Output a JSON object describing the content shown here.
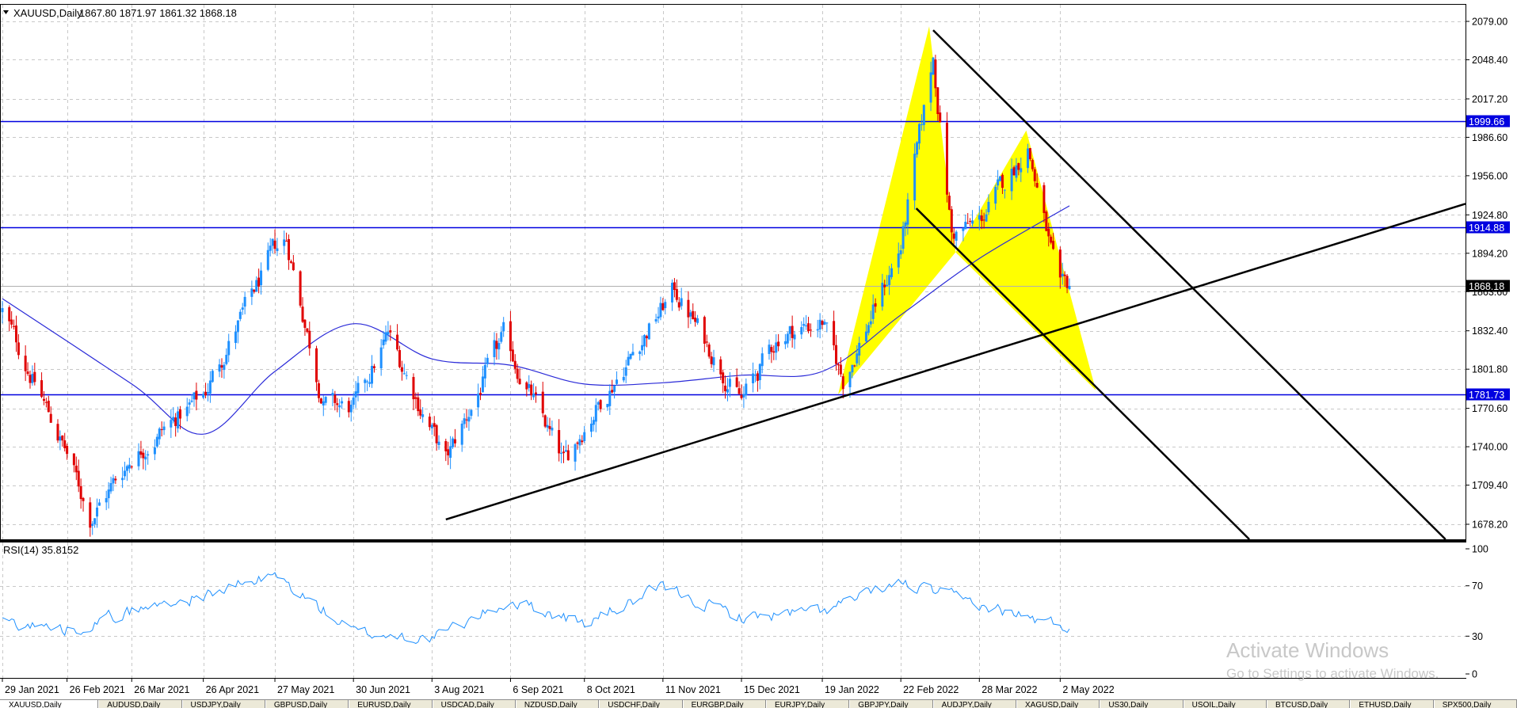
{
  "header": {
    "symbol": "XAUUSD,Daily",
    "ohlc": "1867.80 1871.97 1861.32 1868.18"
  },
  "rsi_header": "RSI(14) 35.8152",
  "watermark": {
    "line1": "Activate Windows",
    "line2": "Go to Settings to activate Windows."
  },
  "colors": {
    "bull": "#1e90ff",
    "bear": "#e00000",
    "ma": "#2a2ad8",
    "hline": "#0000e0",
    "pattern": "#ffff00",
    "trend": "#000000",
    "rsi": "#1e90ff"
  },
  "chart_data": [
    {
      "type": "candlestick",
      "title": "XAUUSD,Daily",
      "y_ticks": [
        "2079.00",
        "2048.40",
        "2017.20",
        "1986.60",
        "1956.00",
        "1924.80",
        "1894.20",
        "1863.60",
        "1832.40",
        "1801.80",
        "1770.60",
        "1740.00",
        "1709.40",
        "1678.20"
      ],
      "x_tick_labels": [
        "29 Jan 2021",
        "26 Feb 2021",
        "26 Mar 2021",
        "26 Apr 2021",
        "27 May 2021",
        "30 Jun 2021",
        "3 Aug 2021",
        "6 Sep 2021",
        "8 Oct 2021",
        "11 Nov 2021",
        "15 Dec 2021",
        "19 Jan 2022",
        "22 Feb 2022",
        "28 Mar 2022",
        "2 May 2022"
      ],
      "ylim": [
        1668,
        2086
      ],
      "current_price": "1868.18",
      "horizontal_levels": [
        "1999.66",
        "1914.88",
        "1781.73"
      ],
      "key_closes": [
        {
          "date": "29 Jan 2021",
          "close": 1848
        },
        {
          "date": "26 Feb 2021",
          "close": 1734
        },
        {
          "date": "8 Mar 2021",
          "close": 1683
        },
        {
          "date": "26 Mar 2021",
          "close": 1732
        },
        {
          "date": "26 Apr 2021",
          "close": 1781
        },
        {
          "date": "27 May 2021",
          "close": 1897
        },
        {
          "date": "1 Jun 2021",
          "close": 1905
        },
        {
          "date": "17 Jun 2021",
          "close": 1774
        },
        {
          "date": "30 Jun 2021",
          "close": 1770
        },
        {
          "date": "15 Jul 2021",
          "close": 1829
        },
        {
          "date": "9 Aug 2021",
          "close": 1728
        },
        {
          "date": "3 Sep 2021",
          "close": 1827
        },
        {
          "date": "29 Sep 2021",
          "close": 1726
        },
        {
          "date": "8 Oct 2021",
          "close": 1757
        },
        {
          "date": "16 Nov 2021",
          "close": 1865
        },
        {
          "date": "15 Dec 2021",
          "close": 1776
        },
        {
          "date": "31 Dec 2021",
          "close": 1828
        },
        {
          "date": "19 Jan 2022",
          "close": 1840
        },
        {
          "date": "28 Jan 2022",
          "close": 1792
        },
        {
          "date": "22 Feb 2022",
          "close": 1899
        },
        {
          "date": "8 Mar 2022",
          "close": 2050
        },
        {
          "date": "16 Mar 2022",
          "close": 1909
        },
        {
          "date": "28 Mar 2022",
          "close": 1919
        },
        {
          "date": "18 Apr 2022",
          "close": 1980
        },
        {
          "date": "2 May 2022",
          "close": 1861
        },
        {
          "date": "6 May 2022",
          "close": 1868
        }
      ],
      "moving_average": [
        {
          "date": "29 Jan 2021",
          "value": 1858
        },
        {
          "date": "26 Mar 2021",
          "value": 1790
        },
        {
          "date": "26 Apr 2021",
          "value": 1750
        },
        {
          "date": "27 May 2021",
          "value": 1800
        },
        {
          "date": "30 Jun 2021",
          "value": 1838
        },
        {
          "date": "3 Aug 2021",
          "value": 1810
        },
        {
          "date": "6 Sep 2021",
          "value": 1805
        },
        {
          "date": "8 Oct 2021",
          "value": 1790
        },
        {
          "date": "11 Nov 2021",
          "value": 1791
        },
        {
          "date": "15 Dec 2021",
          "value": 1797
        },
        {
          "date": "19 Jan 2022",
          "value": 1800
        },
        {
          "date": "22 Feb 2022",
          "value": 1845
        },
        {
          "date": "28 Mar 2022",
          "value": 1890
        },
        {
          "date": "6 May 2022",
          "value": 1932
        }
      ]
    },
    {
      "type": "line",
      "title": "RSI(14) 35.8152",
      "y_ticks": [
        "100",
        "70",
        "30",
        "0"
      ],
      "ylim": [
        0,
        100
      ],
      "series": [
        {
          "values": [
            {
              "date": "29 Jan 2021",
              "value": 42
            },
            {
              "date": "26 Feb 2021",
              "value": 35
            },
            {
              "date": "26 Mar 2021",
              "value": 50
            },
            {
              "date": "26 Apr 2021",
              "value": 62
            },
            {
              "date": "27 May 2021",
              "value": 78
            },
            {
              "date": "30 Jun 2021",
              "value": 33
            },
            {
              "date": "3 Aug 2021",
              "value": 28
            },
            {
              "date": "6 Sep 2021",
              "value": 58
            },
            {
              "date": "8 Oct 2021",
              "value": 40
            },
            {
              "date": "11 Nov 2021",
              "value": 68
            },
            {
              "date": "15 Dec 2021",
              "value": 45
            },
            {
              "date": "19 Jan 2022",
              "value": 50
            },
            {
              "date": "22 Feb 2022",
              "value": 72
            },
            {
              "date": "28 Mar 2022",
              "value": 55
            },
            {
              "date": "6 May 2022",
              "value": 36
            }
          ]
        }
      ]
    }
  ],
  "tabs": [
    "XAUUSD,Daily",
    "AUDUSD,Daily",
    "USDJPY,Daily",
    "GBPUSD,Daily",
    "EURUSD,Daily",
    "USDCAD,Daily",
    "NZDUSD,Daily",
    "USDCHF,Daily",
    "EURGBP,Daily",
    "EURJPY,Daily",
    "GBPJPY,Daily",
    "AUDJPY,Daily",
    "XAGUSD,Daily",
    "US30,Daily",
    "USOIL,Daily",
    "BTCUSD,Daily",
    "ETHUSD,Daily",
    "SPX500,Daily"
  ]
}
